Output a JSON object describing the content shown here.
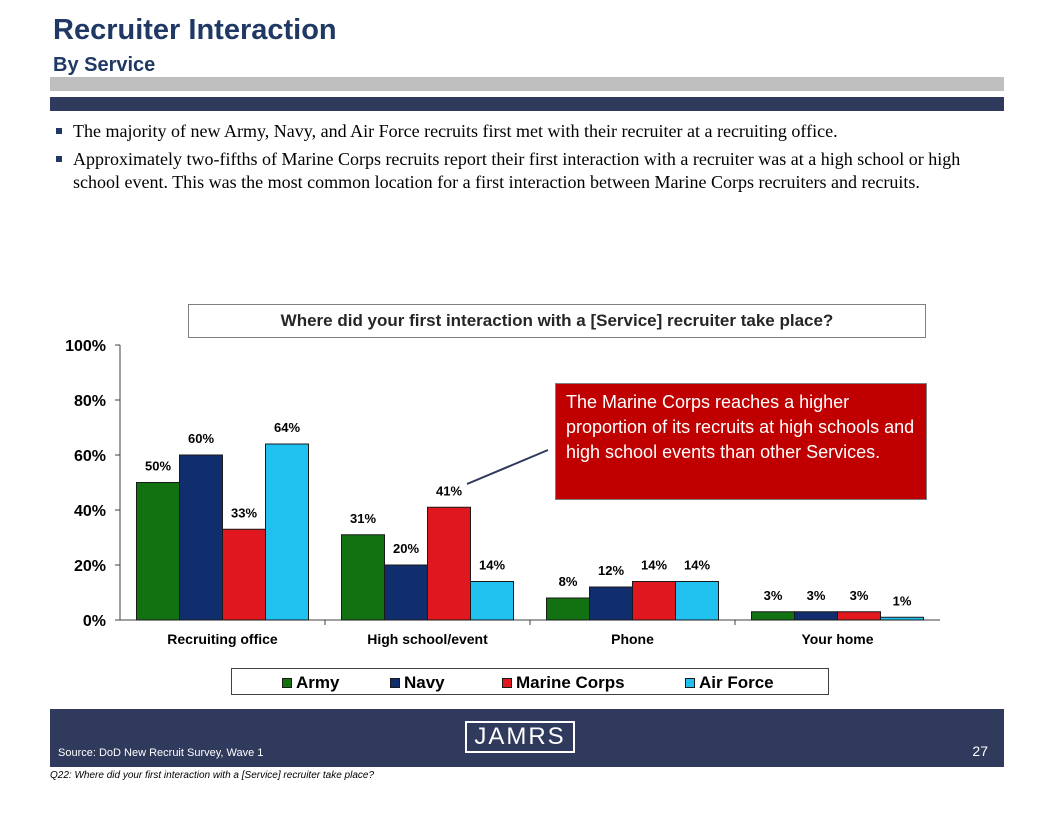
{
  "header": {
    "title": "Recruiter Interaction",
    "subtitle": "By Service"
  },
  "bullets": [
    "The majority of new Army, Navy, and Air Force recruits first met with their recruiter at a recruiting office.",
    "Approximately two-fifths of Marine Corps recruits report their first interaction with a recruiter was at a high school or high school event.  This was the most common location for a first interaction between Marine Corps recruiters and recruits."
  ],
  "chart_data": {
    "type": "bar",
    "title": "Where did your first interaction with a [Service] recruiter take place?",
    "categories": [
      "Recruiting office",
      "High school/event",
      "Phone",
      "Your home"
    ],
    "series": [
      {
        "name": "Army",
        "values": [
          50,
          31,
          8,
          3
        ],
        "color": "#127212"
      },
      {
        "name": "Navy",
        "values": [
          60,
          20,
          12,
          3
        ],
        "color": "#102e6e"
      },
      {
        "name": "Marine Corps",
        "values": [
          33,
          41,
          14,
          3
        ],
        "color": "#e0171e"
      },
      {
        "name": "Air Force",
        "values": [
          64,
          14,
          14,
          1
        ],
        "color": "#20c0ef"
      }
    ],
    "yticks": [
      "0%",
      "20%",
      "40%",
      "60%",
      "80%",
      "100%"
    ],
    "ylim": [
      0,
      100
    ],
    "value_suffix": "%",
    "grid": false,
    "legend_position": "bottom"
  },
  "callout": {
    "text": "The Marine Corps reaches a higher proportion of its recruits at high schools and high school events than other Services."
  },
  "footer": {
    "source": "Source:  DoD New Recruit Survey, Wave 1",
    "logo": "JAMRS",
    "page_number": "27",
    "footnote": "Q22:  Where did your first interaction with a [Service] recruiter take place?"
  },
  "colors": {
    "navy_band": "#2f3a5c",
    "gray_band": "#bfbfbf",
    "title": "#1f3864",
    "callout": "#c00000"
  }
}
